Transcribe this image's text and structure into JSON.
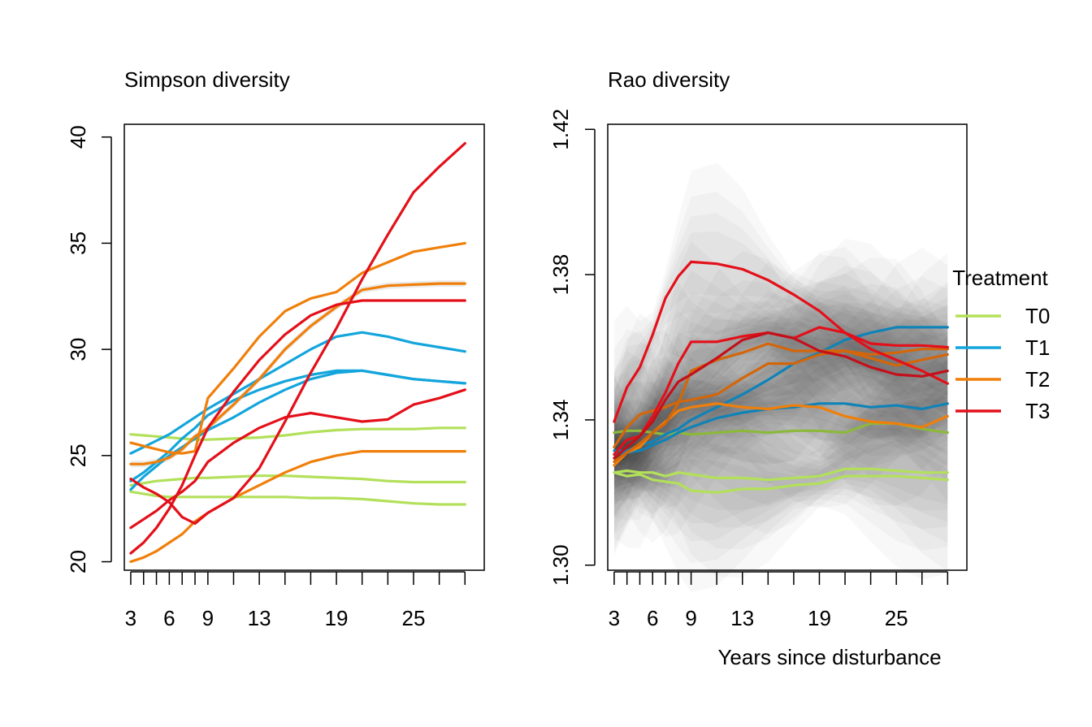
{
  "figure": {
    "xlabel": "Years since disturbance"
  },
  "legend": {
    "title": "Treatment",
    "entries": [
      {
        "label": "T0",
        "color": "#b3e05a"
      },
      {
        "label": "T1",
        "color": "#13a5dc"
      },
      {
        "label": "T2",
        "color": "#f07f0a"
      },
      {
        "label": "T3",
        "color": "#e3101a"
      }
    ]
  },
  "chart_data": [
    {
      "type": "line",
      "title": "Simpson diversity",
      "xlabel": "",
      "ylabel": "",
      "xlim": [
        2.5,
        30.5
      ],
      "ylim": [
        19.6,
        40.6
      ],
      "x_ticks": [
        3,
        4,
        5,
        6,
        7,
        8,
        9,
        11,
        13,
        15,
        17,
        19,
        21,
        23,
        25,
        27,
        29
      ],
      "x_tick_labels": [
        {
          "x": 3,
          "label": "3"
        },
        {
          "x": 6,
          "label": "6"
        },
        {
          "x": 9,
          "label": "9"
        },
        {
          "x": 13,
          "label": "13"
        },
        {
          "x": 19,
          "label": "19"
        },
        {
          "x": 25,
          "label": "25"
        }
      ],
      "y_ticks": [
        20,
        25,
        30,
        35,
        40
      ],
      "x": [
        3,
        4,
        5,
        6,
        7,
        8,
        9,
        11,
        13,
        15,
        17,
        19,
        21,
        23,
        25,
        27,
        29
      ],
      "series": [
        {
          "group": "T0",
          "color": "#b3e05a",
          "values": [
            26.0,
            25.95,
            25.9,
            25.85,
            25.8,
            25.75,
            25.75,
            25.8,
            25.85,
            25.95,
            26.1,
            26.2,
            26.25,
            26.25,
            26.25,
            26.3,
            26.3
          ]
        },
        {
          "group": "T0",
          "color": "#b3e05a",
          "values": [
            23.6,
            23.7,
            23.8,
            23.85,
            23.9,
            23.95,
            23.95,
            24.0,
            24.05,
            24.05,
            24.0,
            23.95,
            23.9,
            23.8,
            23.75,
            23.75,
            23.75
          ]
        },
        {
          "group": "T0",
          "color": "#b3e05a",
          "values": [
            23.3,
            23.2,
            23.1,
            23.05,
            23.05,
            23.05,
            23.05,
            23.05,
            23.05,
            23.05,
            23.0,
            23.0,
            22.95,
            22.85,
            22.75,
            22.7,
            22.7
          ]
        },
        {
          "group": "T1",
          "color": "#13a5dc",
          "values": [
            25.1,
            25.4,
            25.7,
            26.0,
            26.4,
            26.8,
            27.2,
            27.9,
            28.6,
            29.3,
            30.0,
            30.6,
            30.8,
            30.6,
            30.3,
            30.1,
            29.9
          ]
        },
        {
          "group": "T1",
          "color": "#13a5dc",
          "values": [
            23.8,
            24.2,
            24.7,
            25.2,
            25.8,
            26.3,
            26.9,
            27.6,
            28.1,
            28.5,
            28.8,
            29.0,
            29.0,
            28.8,
            28.6,
            28.5,
            28.4
          ]
        },
        {
          "group": "T1",
          "color": "#13a5dc",
          "values": [
            23.4,
            24.0,
            24.5,
            25.0,
            25.4,
            25.8,
            26.2,
            26.8,
            27.5,
            28.1,
            28.6,
            28.9,
            29.0,
            28.8,
            28.6,
            28.5,
            28.4
          ]
        },
        {
          "group": "T2",
          "color": "#f07f0a",
          "values": [
            25.6,
            25.45,
            25.3,
            25.15,
            25.1,
            25.2,
            27.7,
            29.1,
            30.6,
            31.8,
            32.4,
            32.7,
            33.6,
            34.1,
            34.6,
            34.8,
            35.0
          ]
        },
        {
          "group": "T2",
          "color": "#f07f0a",
          "values": [
            24.6,
            24.6,
            24.7,
            24.9,
            25.3,
            25.9,
            26.3,
            27.4,
            28.6,
            30.0,
            31.1,
            32.0,
            32.8,
            33.0,
            33.05,
            33.1,
            33.1
          ]
        },
        {
          "group": "T2",
          "color": "#f07f0a",
          "values": [
            20.0,
            20.2,
            20.5,
            20.9,
            21.3,
            21.9,
            22.3,
            23.0,
            23.6,
            24.2,
            24.7,
            25.0,
            25.2,
            25.2,
            25.2,
            25.2,
            25.2
          ]
        },
        {
          "group": "T3",
          "color": "#e3101a",
          "values": [
            21.6,
            22.0,
            22.4,
            22.9,
            23.3,
            23.8,
            24.7,
            25.6,
            26.3,
            26.8,
            27.0,
            26.8,
            26.6,
            26.7,
            27.4,
            27.7,
            28.1
          ]
        },
        {
          "group": "T3",
          "color": "#e3101a",
          "values": [
            23.9,
            23.5,
            23.2,
            22.8,
            22.1,
            21.8,
            22.3,
            23.0,
            24.4,
            26.6,
            28.9,
            31.0,
            33.3,
            35.4,
            37.4,
            38.6,
            39.7
          ]
        },
        {
          "group": "T3",
          "color": "#e3101a",
          "values": [
            20.4,
            20.9,
            21.6,
            22.5,
            23.6,
            25.0,
            26.3,
            28.0,
            29.5,
            30.7,
            31.6,
            32.1,
            32.3,
            32.3,
            32.3,
            32.3,
            32.3
          ]
        }
      ]
    },
    {
      "type": "line",
      "title": "Rao diversity",
      "xlabel": "Years since disturbance",
      "ylabel": "",
      "xlim": [
        2.5,
        30.5
      ],
      "ylim": [
        1.2986,
        1.4214
      ],
      "x_ticks": [
        3,
        4,
        5,
        6,
        7,
        8,
        9,
        11,
        13,
        15,
        17,
        19,
        21,
        23,
        25,
        27,
        29
      ],
      "x_tick_labels": [
        {
          "x": 3,
          "label": "3"
        },
        {
          "x": 6,
          "label": "6"
        },
        {
          "x": 9,
          "label": "9"
        },
        {
          "x": 13,
          "label": "13"
        },
        {
          "x": 19,
          "label": "19"
        },
        {
          "x": 25,
          "label": "25"
        }
      ],
      "y_ticks": [
        1.3,
        1.34,
        1.38,
        1.42
      ],
      "y_tick_labels": [
        "1.30",
        "1.34",
        "1.38",
        "1.42"
      ],
      "x": [
        3,
        4,
        5,
        6,
        7,
        8,
        9,
        11,
        13,
        15,
        17,
        19,
        21,
        23,
        25,
        27,
        29
      ],
      "series": [
        {
          "group": "T0",
          "color": "#8cb83c",
          "values": [
            1.3365,
            1.337,
            1.337,
            1.3365,
            1.336,
            1.3365,
            1.336,
            1.3365,
            1.337,
            1.3365,
            1.337,
            1.337,
            1.3365,
            1.339,
            1.339,
            1.3375,
            1.3365
          ]
        },
        {
          "group": "T0",
          "color": "#b3e05a",
          "values": [
            1.3255,
            1.326,
            1.3255,
            1.3255,
            1.3245,
            1.3255,
            1.325,
            1.324,
            1.324,
            1.3235,
            1.324,
            1.3245,
            1.3265,
            1.3265,
            1.326,
            1.3255,
            1.3255
          ]
        },
        {
          "group": "T0",
          "color": "#b3e05a",
          "values": [
            1.3255,
            1.3245,
            1.325,
            1.3235,
            1.323,
            1.3225,
            1.3205,
            1.32,
            1.321,
            1.321,
            1.322,
            1.3225,
            1.3245,
            1.3245,
            1.3245,
            1.324,
            1.3235
          ]
        },
        {
          "group": "T1",
          "color": "#0f83b8",
          "values": [
            1.3305,
            1.331,
            1.3315,
            1.333,
            1.3345,
            1.3365,
            1.338,
            1.3405,
            1.342,
            1.343,
            1.3435,
            1.3445,
            1.3445,
            1.3435,
            1.344,
            1.343,
            1.3445
          ]
        },
        {
          "group": "T1",
          "color": "#0f83b8",
          "values": [
            1.3315,
            1.3315,
            1.333,
            1.334,
            1.336,
            1.3375,
            1.34,
            1.3435,
            1.347,
            1.351,
            1.3555,
            1.3585,
            1.362,
            1.364,
            1.3655,
            1.3655,
            1.3655
          ]
        },
        {
          "group": "T2",
          "color": "#f07f0a",
          "values": [
            1.3275,
            1.331,
            1.3325,
            1.3365,
            1.3395,
            1.3425,
            1.3435,
            1.3445,
            1.3435,
            1.343,
            1.344,
            1.3435,
            1.341,
            1.3395,
            1.339,
            1.338,
            1.341
          ]
        },
        {
          "group": "T2",
          "color": "#d4660a",
          "values": [
            1.3325,
            1.338,
            1.3415,
            1.3425,
            1.3435,
            1.345,
            1.3455,
            1.347,
            1.3515,
            1.3555,
            1.3555,
            1.358,
            1.359,
            1.357,
            1.355,
            1.3565,
            1.358
          ]
        },
        {
          "group": "T2",
          "color": "#d4660a",
          "values": [
            1.3285,
            1.331,
            1.3335,
            1.3365,
            1.339,
            1.3445,
            1.3535,
            1.3565,
            1.3585,
            1.361,
            1.359,
            1.359,
            1.359,
            1.358,
            1.3585,
            1.3595,
            1.3595
          ]
        },
        {
          "group": "T3",
          "color": "#e3101a",
          "values": [
            1.3395,
            1.349,
            1.3545,
            1.3635,
            1.3735,
            1.3795,
            1.3835,
            1.383,
            1.3815,
            1.3785,
            1.3745,
            1.37,
            1.364,
            1.3595,
            1.3565,
            1.3535,
            1.35
          ]
        },
        {
          "group": "T3",
          "color": "#e3101a",
          "values": [
            1.3305,
            1.3345,
            1.3355,
            1.341,
            1.3475,
            1.3555,
            1.3615,
            1.3615,
            1.363,
            1.364,
            1.3625,
            1.3655,
            1.364,
            1.361,
            1.3605,
            1.3605,
            1.36
          ]
        },
        {
          "group": "T3",
          "color": "#c4101a",
          "values": [
            1.3295,
            1.3325,
            1.3355,
            1.3395,
            1.3455,
            1.3505,
            1.3525,
            1.357,
            1.362,
            1.364,
            1.3625,
            1.359,
            1.3575,
            1.3545,
            1.3525,
            1.352,
            1.3535
          ]
        }
      ]
    }
  ]
}
